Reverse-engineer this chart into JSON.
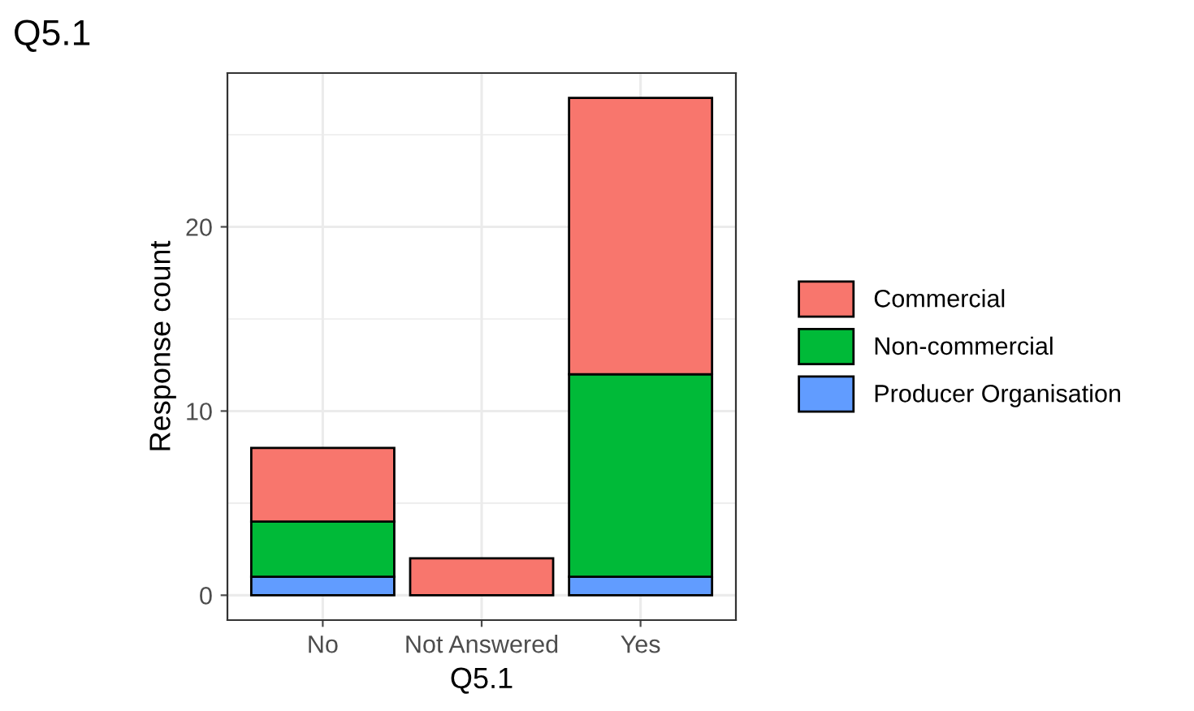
{
  "chart_data": {
    "type": "bar",
    "title": "Q5.1",
    "xlabel": "Q5.1",
    "ylabel": "Response count",
    "categories": [
      "No",
      "Not Answered",
      "Yes"
    ],
    "stacked": true,
    "series": [
      {
        "name": "Producer Organisation",
        "color": "#619cff",
        "values": [
          1,
          null,
          1
        ]
      },
      {
        "name": "Non-commercial",
        "color": "#00ba38",
        "values": [
          3,
          null,
          11
        ]
      },
      {
        "name": "Commercial",
        "color": "#f8766d",
        "values": [
          4,
          2,
          15
        ]
      }
    ],
    "ylim": [
      -1.35,
      28.35
    ],
    "yticks": [
      0,
      10,
      20
    ],
    "grid": true,
    "legend": "right"
  }
}
